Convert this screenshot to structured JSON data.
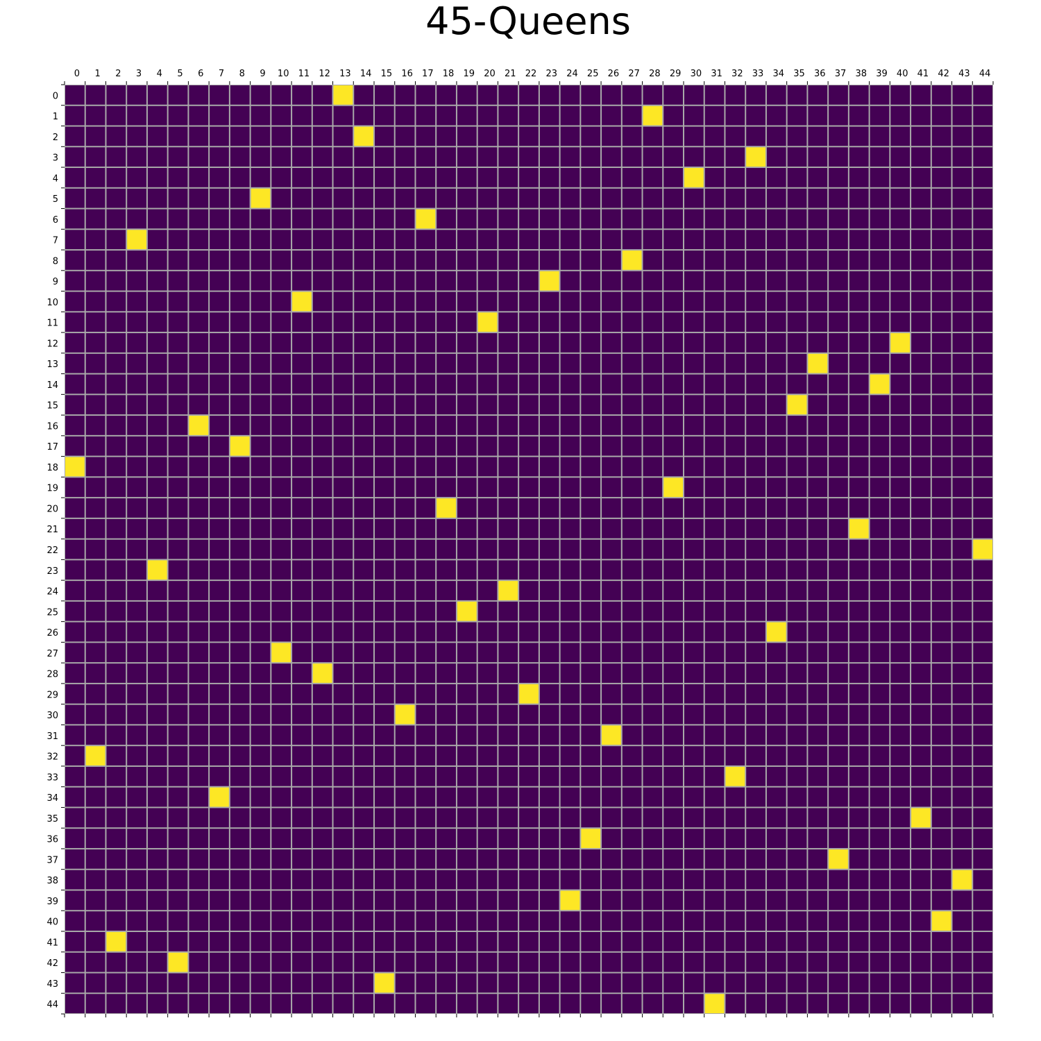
{
  "title": "45-Queens",
  "board": {
    "size": 45,
    "column_labels": [
      "0",
      "1",
      "2",
      "3",
      "4",
      "5",
      "6",
      "7",
      "8",
      "9",
      "10",
      "11",
      "12",
      "13",
      "14",
      "15",
      "16",
      "17",
      "18",
      "19",
      "20",
      "21",
      "22",
      "23",
      "24",
      "25",
      "26",
      "27",
      "28",
      "29",
      "30",
      "31",
      "32",
      "33",
      "34",
      "35",
      "36",
      "37",
      "38",
      "39",
      "40",
      "41",
      "42",
      "43",
      "44"
    ],
    "row_labels": [
      "0",
      "1",
      "2",
      "3",
      "4",
      "5",
      "6",
      "7",
      "8",
      "9",
      "10",
      "11",
      "12",
      "13",
      "14",
      "15",
      "16",
      "17",
      "18",
      "19",
      "20",
      "21",
      "22",
      "23",
      "24",
      "25",
      "26",
      "27",
      "28",
      "29",
      "30",
      "31",
      "32",
      "33",
      "34",
      "35",
      "36",
      "37",
      "38",
      "39",
      "40",
      "41",
      "42",
      "43",
      "44"
    ],
    "queen_columns_by_row": [
      13,
      28,
      14,
      33,
      30,
      9,
      17,
      3,
      27,
      23,
      11,
      20,
      40,
      36,
      39,
      35,
      6,
      8,
      0,
      29,
      18,
      38,
      44,
      4,
      21,
      19,
      34,
      10,
      12,
      22,
      16,
      26,
      1,
      32,
      7,
      41,
      25,
      37,
      43,
      24,
      42,
      2,
      5,
      15,
      31
    ],
    "colors": {
      "empty_cell": "#440154",
      "queen_cell": "#fde725",
      "grid_line": "#a9a9a9",
      "text": "#000000"
    }
  }
}
